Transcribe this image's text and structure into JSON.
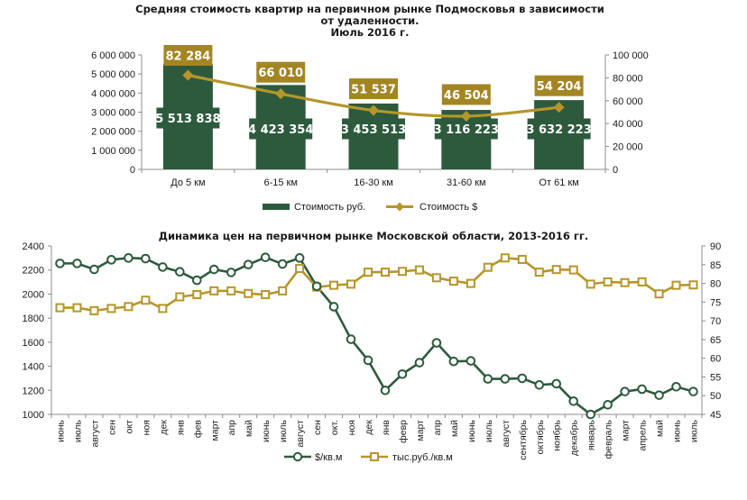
{
  "colors": {
    "green": "#2d5a3d",
    "gold": "#b5962a",
    "gold_dark": "#a38524",
    "axis": "#8c8c8c",
    "grid": "#d9d9d9"
  },
  "chart_data": [
    {
      "type": "bar",
      "title_lines": [
        "Средняя стоимость квартир на первичном рынке Подмосковья в зависимости",
        "от удаленности.",
        "Июль 2016 г."
      ],
      "categories": [
        "До 5 км",
        "6-15 км",
        "16-30 км",
        "31-60 км",
        "От 61 км"
      ],
      "series": [
        {
          "name": "Стоимость руб.",
          "type": "bar",
          "axis": "left",
          "values": [
            5513838,
            4423354,
            3453513,
            3116223,
            3632223
          ],
          "labels": [
            "5 513 838",
            "4 423 354",
            "3 453 513",
            "3 116 223",
            "3 632 223"
          ]
        },
        {
          "name": "Стоимость $",
          "type": "line",
          "axis": "right",
          "values": [
            82284,
            66010,
            51537,
            46504,
            54204
          ],
          "labels": [
            "82 284",
            "66 010",
            "51 537",
            "46 504",
            "54 204"
          ]
        }
      ],
      "y_left": {
        "min": 0,
        "max": 6000000,
        "ticks": [
          "0",
          "1 000 000",
          "2 000 000",
          "3 000 000",
          "4 000 000",
          "5 000 000",
          "6 000 000"
        ]
      },
      "y_right": {
        "min": 0,
        "max": 100000,
        "ticks": [
          "0",
          "20 000",
          "40 000",
          "60 000",
          "80 000",
          "100 000"
        ]
      },
      "legend_position": "bottom",
      "grid": false
    },
    {
      "type": "line",
      "title": "Динамика цен на первичном рынке Московской области, 2013-2016 гг.",
      "x": [
        "июнь",
        "июль",
        "август",
        "сен",
        "окт",
        "ноя",
        "дек",
        "янв",
        "фев",
        "март",
        "апр",
        "май",
        "июнь",
        "июль",
        "август",
        "сен",
        "окт.",
        "ноя",
        "дек",
        "янв",
        "февр",
        "март",
        "апр",
        "май",
        "июнь",
        "июль",
        "август",
        "сентябрь",
        "октябрь",
        "ноябрь",
        "декабрь",
        "январь",
        "февраль",
        "март",
        "апрель",
        "май",
        "июнь",
        "июль"
      ],
      "series": [
        {
          "name": "$/кв.м",
          "axis": "left",
          "marker": "circle",
          "values": [
            2255,
            2255,
            2205,
            2285,
            2300,
            2295,
            2225,
            2185,
            2115,
            2205,
            2180,
            2245,
            2305,
            2250,
            2300,
            2065,
            1895,
            1625,
            1450,
            1200,
            1335,
            1430,
            1595,
            1440,
            1445,
            1295,
            1295,
            1300,
            1245,
            1255,
            1110,
            1000,
            1080,
            1190,
            1210,
            1160,
            1230,
            1190
          ]
        },
        {
          "name": "тыс.руб./кв.м",
          "axis": "right",
          "marker": "square",
          "values": [
            73.5,
            73.5,
            72.7,
            73.3,
            73.8,
            75.5,
            73.3,
            76.4,
            77,
            78,
            78,
            77.3,
            77,
            78,
            84,
            79,
            79.5,
            79.8,
            83,
            83,
            83.2,
            83.6,
            81.5,
            80.6,
            80,
            84.3,
            86.8,
            86.4,
            83,
            83.7,
            83.6,
            79.8,
            80.4,
            80.2,
            80.4,
            77.2,
            79.5,
            79.6
          ]
        }
      ],
      "y_left": {
        "min": 1000,
        "max": 2400,
        "ticks": [
          "1000",
          "1200",
          "1400",
          "1600",
          "1800",
          "2000",
          "2200",
          "2400"
        ]
      },
      "y_right": {
        "min": 45,
        "max": 90,
        "ticks": [
          "45",
          "50",
          "55",
          "60",
          "65",
          "70",
          "75",
          "80",
          "85",
          "90"
        ]
      },
      "legend_position": "bottom",
      "grid": false
    }
  ]
}
